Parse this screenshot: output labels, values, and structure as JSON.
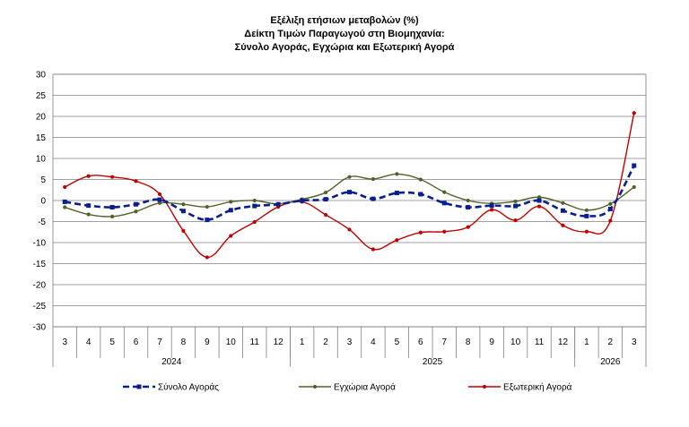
{
  "chart_data": {
    "type": "line",
    "title": [
      "Εξέλιξη ετήσιων μεταβολών (%)",
      "Δείκτη Τιμών Παραγωγού στη Βιομηχανία:",
      "Σύνολο Αγοράς, Εγχώρια και Εξωτερική Αγορά"
    ],
    "months": [
      "3",
      "4",
      "5",
      "6",
      "7",
      "8",
      "9",
      "10",
      "11",
      "12",
      "1",
      "2",
      "3",
      "4",
      "5",
      "6",
      "7",
      "8",
      "9",
      "10",
      "11",
      "12",
      "1",
      "2",
      "3"
    ],
    "years": [
      {
        "label": "2024",
        "start": 0,
        "end": 9
      },
      {
        "label": "2025",
        "start": 10,
        "end": 21
      },
      {
        "label": "2026",
        "start": 22,
        "end": 24
      }
    ],
    "ylim": [
      -30,
      30
    ],
    "yticks": [
      30,
      25,
      20,
      15,
      10,
      5,
      0,
      -5,
      -10,
      -15,
      -20,
      -25,
      -30
    ],
    "grid": true,
    "legend_position": "bottom",
    "series": [
      {
        "name": "Σύνολο Αγοράς",
        "color": "#0a1f8f",
        "style": "dashed",
        "marker": "square",
        "values": [
          -0.3,
          -1.2,
          -1.6,
          -0.9,
          0.2,
          -2.5,
          -4.6,
          -2.3,
          -1.3,
          -0.9,
          0.0,
          0.3,
          2.0,
          0.4,
          1.8,
          1.5,
          -0.6,
          -1.6,
          -1.2,
          -1.3,
          0.0,
          -2.4,
          -3.7,
          -2.0,
          8.3
        ]
      },
      {
        "name": "Εγχώρια Αγορά",
        "color": "#4f6228",
        "style": "solid",
        "marker": "circle",
        "values": [
          -1.6,
          -3.3,
          -3.8,
          -2.6,
          -0.6,
          -0.9,
          -1.5,
          -0.3,
          0.0,
          -0.8,
          0.3,
          1.9,
          5.6,
          5.1,
          6.3,
          5.0,
          2.0,
          0.0,
          -0.7,
          -0.2,
          0.8,
          -0.6,
          -2.3,
          -0.8,
          3.2
        ]
      },
      {
        "name": "Εξωτερική Αγορά",
        "color": "#c00000",
        "style": "solid",
        "marker": "circle",
        "values": [
          3.2,
          5.8,
          5.6,
          4.6,
          1.5,
          -7.2,
          -13.5,
          -8.4,
          -5.1,
          -1.5,
          -0.3,
          -3.4,
          -6.9,
          -11.6,
          -9.4,
          -7.6,
          -7.4,
          -6.3,
          -2.2,
          -4.7,
          -1.4,
          -5.9,
          -7.4,
          -4.8,
          20.8
        ]
      }
    ]
  }
}
